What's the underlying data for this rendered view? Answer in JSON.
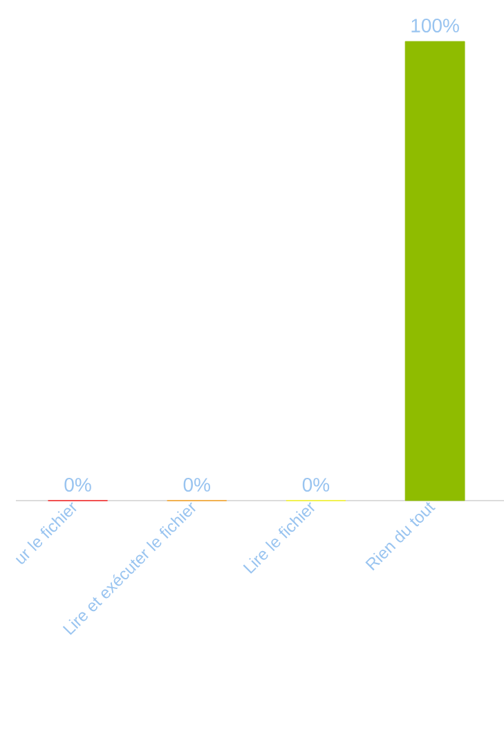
{
  "chart_data": {
    "type": "bar",
    "categories": [
      "ur le fichier",
      "Lire et exécuter le fichier",
      "Lire le fichier",
      "Rien du tout"
    ],
    "values": [
      0,
      0,
      0,
      100
    ],
    "colors": [
      "#ff0000",
      "#ff9900",
      "#ffff00",
      "#8fbc00"
    ],
    "value_labels": [
      "0%",
      "0%",
      "0%",
      "100%"
    ]
  }
}
